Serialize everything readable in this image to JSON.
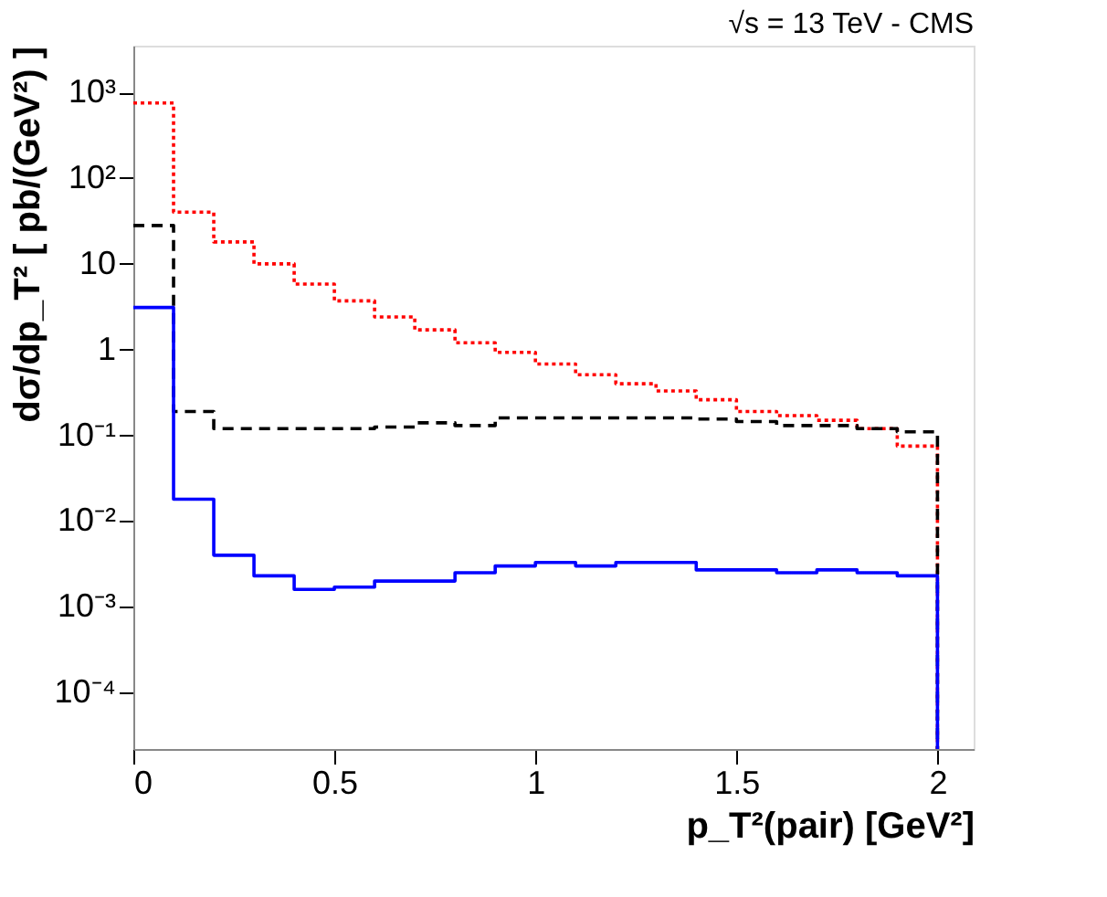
{
  "chart_data": {
    "type": "histogram",
    "title": "√s = 13 TeV - CMS",
    "xlabel": "p_T²(pair) [GeV²]",
    "ylabel": "dσ/dp_T² [ pb/(GeV²) ]",
    "bins": [
      0,
      0.1,
      0.2,
      0.3,
      0.4,
      0.5,
      0.6,
      0.7,
      0.8,
      0.9,
      1.0,
      1.1,
      1.2,
      1.3,
      1.4,
      1.5,
      1.6,
      1.7,
      1.8,
      1.9,
      2.0
    ],
    "series": [
      {
        "color": "#ff0000",
        "line_style": "dotted",
        "values": [
          750,
          40,
          18,
          10,
          5.8,
          3.7,
          2.4,
          1.7,
          1.2,
          0.93,
          0.68,
          0.51,
          0.4,
          0.33,
          0.26,
          0.19,
          0.17,
          0.15,
          0.12,
          0.075
        ]
      },
      {
        "color": "#000000",
        "line_style": "dashed",
        "values": [
          28,
          0.19,
          0.12,
          0.12,
          0.12,
          0.12,
          0.125,
          0.14,
          0.13,
          0.16,
          0.16,
          0.16,
          0.16,
          0.16,
          0.155,
          0.145,
          0.13,
          0.13,
          0.12,
          0.11
        ]
      },
      {
        "color": "#0000ff",
        "line_style": "solid",
        "values": [
          3.1,
          0.018,
          0.004,
          0.0023,
          0.0016,
          0.0017,
          0.002,
          0.002,
          0.0025,
          0.003,
          0.0033,
          0.003,
          0.0033,
          0.0033,
          0.0027,
          0.0027,
          0.0025,
          0.0027,
          0.0025,
          0.0023
        ]
      }
    ],
    "xlim": [
      0,
      2.09
    ],
    "xticks": [
      0,
      0.5,
      1,
      1.5,
      2
    ],
    "ylim": [
      2.2e-05,
      3500
    ],
    "yticks": [
      {
        "value": 0.0001,
        "label": "10⁻⁴"
      },
      {
        "value": 0.001,
        "label": "10⁻³"
      },
      {
        "value": 0.01,
        "label": "10⁻²"
      },
      {
        "value": 0.1,
        "label": "10⁻¹"
      },
      1,
      10,
      {
        "value": 100,
        "label": "10²"
      },
      {
        "value": 1000,
        "label": "10³"
      }
    ],
    "log": true,
    "grid": false,
    "legend": false
  }
}
